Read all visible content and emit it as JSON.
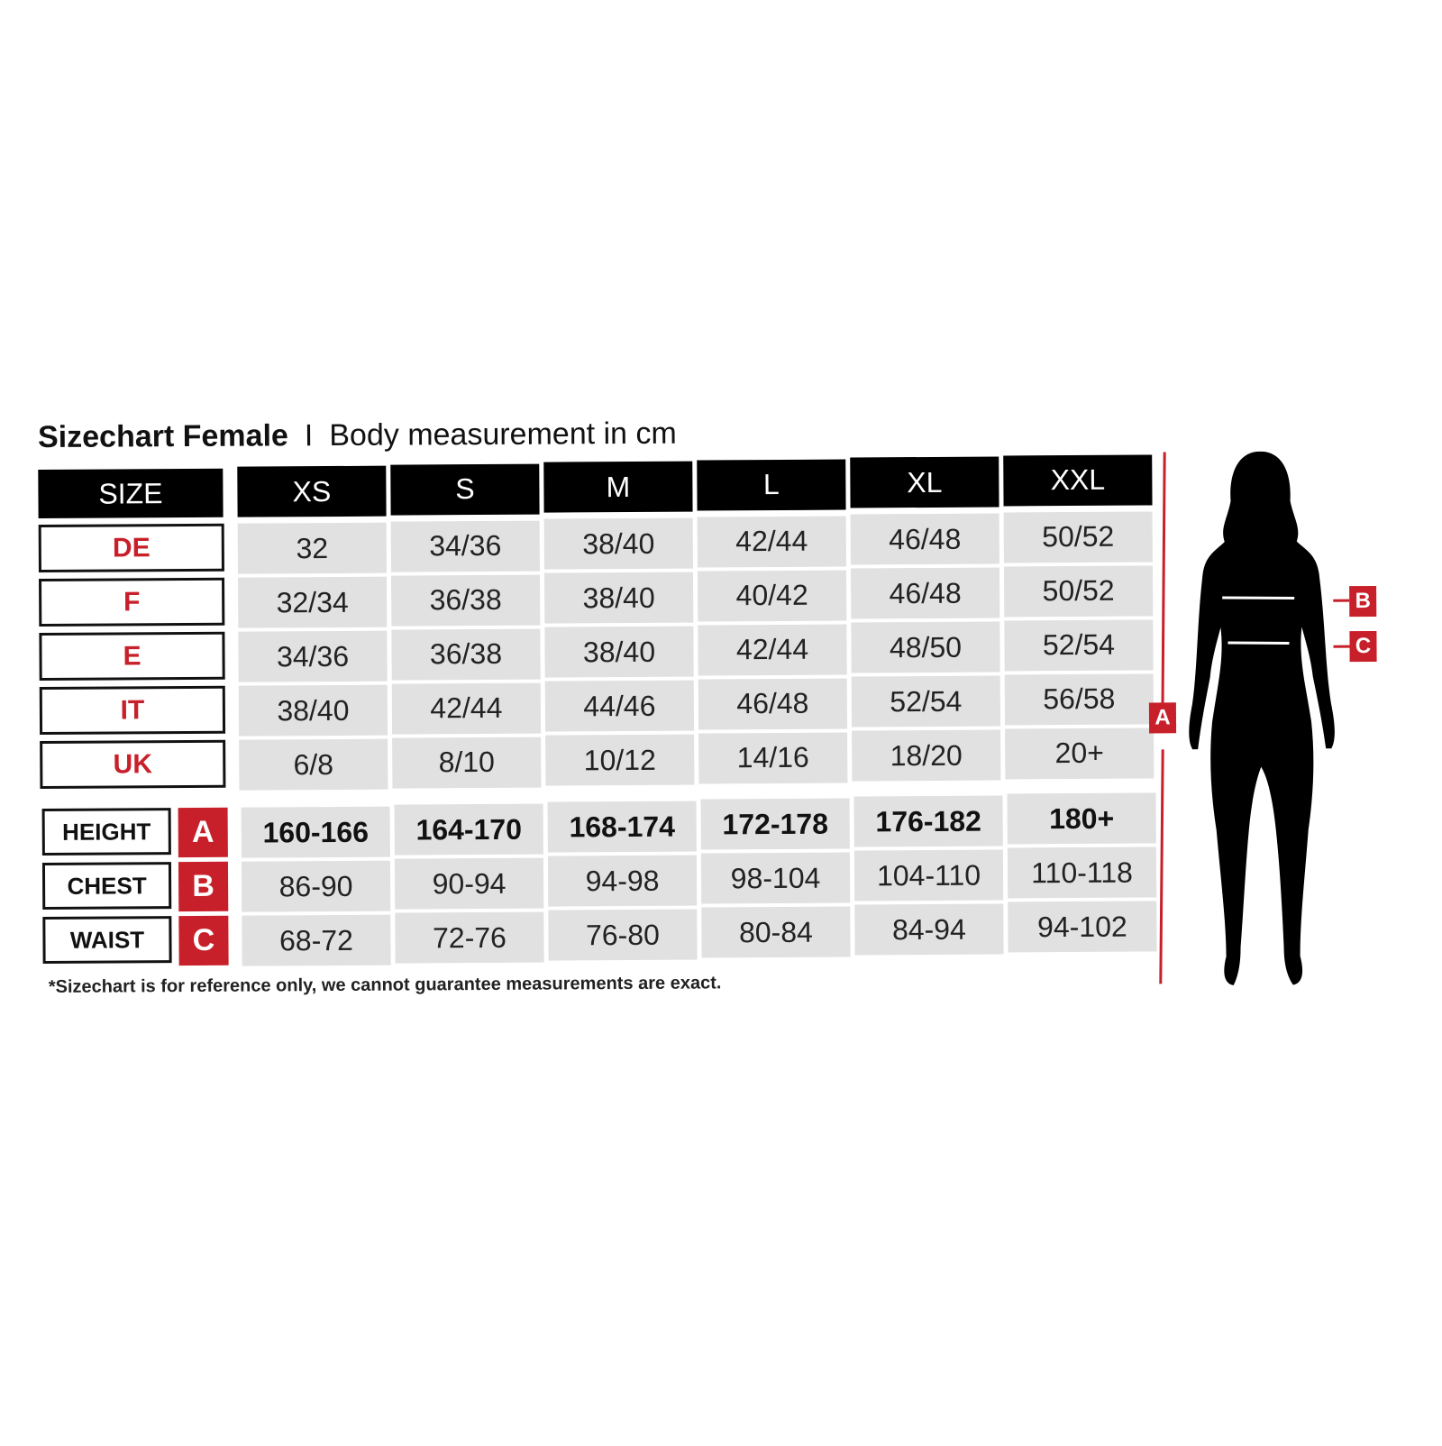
{
  "title": {
    "bold": "Sizechart Female",
    "separator": "I",
    "subtitle": "Body measurement in cm"
  },
  "header": {
    "label": "SIZE",
    "sizes": [
      "XS",
      "S",
      "M",
      "L",
      "XL",
      "XXL"
    ]
  },
  "conversion_rows": [
    {
      "label": "DE",
      "values": [
        "32",
        "34/36",
        "38/40",
        "42/44",
        "46/48",
        "50/52"
      ]
    },
    {
      "label": "F",
      "values": [
        "32/34",
        "36/38",
        "38/40",
        "40/42",
        "46/48",
        "50/52"
      ]
    },
    {
      "label": "E",
      "values": [
        "34/36",
        "36/38",
        "38/40",
        "42/44",
        "48/50",
        "52/54"
      ]
    },
    {
      "label": "IT",
      "values": [
        "38/40",
        "42/44",
        "44/46",
        "46/48",
        "52/54",
        "56/58"
      ]
    },
    {
      "label": "UK",
      "values": [
        "6/8",
        "8/10",
        "10/12",
        "14/16",
        "18/20",
        "20+"
      ]
    }
  ],
  "measurement_rows": [
    {
      "label": "HEIGHT",
      "letter": "A",
      "values": [
        "160-166",
        "164-170",
        "168-174",
        "172-178",
        "176-182",
        "180+"
      ]
    },
    {
      "label": "CHEST",
      "letter": "B",
      "values": [
        "86-90",
        "90-94",
        "94-98",
        "98-104",
        "104-110",
        "110-118"
      ]
    },
    {
      "label": "WAIST",
      "letter": "C",
      "values": [
        "68-72",
        "72-76",
        "76-80",
        "80-84",
        "84-94",
        "94-102"
      ]
    }
  ],
  "footnote": "*Sizechart is for reference only, we cannot guarantee measurements are exact.",
  "figure": {
    "height_tag": "A",
    "chest_tag": "B",
    "waist_tag": "C"
  },
  "colors": {
    "accent": "#c8202a",
    "header": "#000000",
    "cell": "#e1e1e1"
  }
}
